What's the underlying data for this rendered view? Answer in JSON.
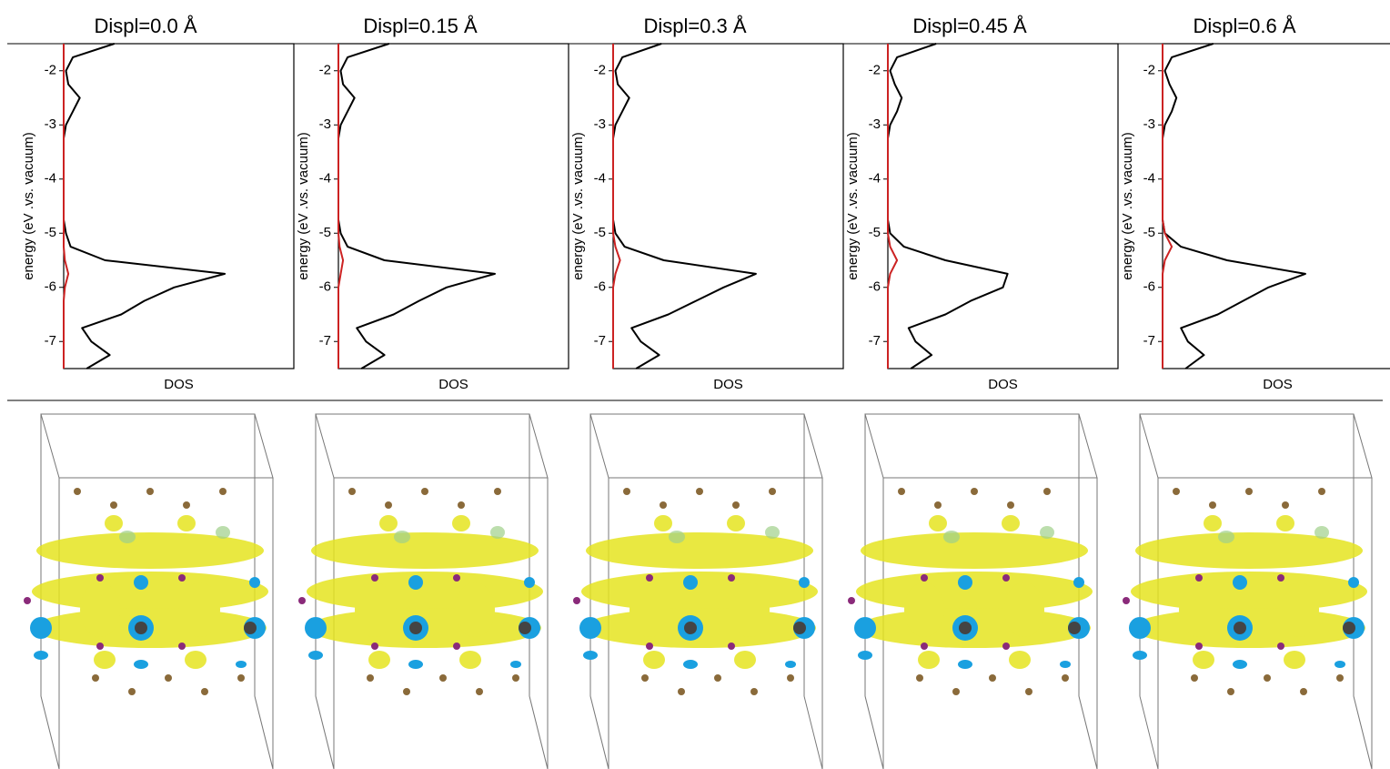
{
  "chart_data": [
    {
      "type": "line",
      "title": "Displ=0.0 Å",
      "xlabel": "DOS",
      "ylabel": "energy (eV .vs. vacuum)",
      "y": [
        -1.5,
        -1.75,
        -2.0,
        -2.25,
        -2.5,
        -2.75,
        -3.0,
        -3.25,
        -3.5,
        -3.75,
        -4.0,
        -4.25,
        -4.5,
        -4.75,
        -5.0,
        -5.25,
        -5.5,
        -5.75,
        -6.0,
        -6.25,
        -6.5,
        -6.75,
        -7.0,
        -7.25,
        -7.5
      ],
      "xlim": [
        0,
        1
      ],
      "ylim": [
        -7.5,
        -1.5
      ],
      "yticks": [
        -2,
        -3,
        -4,
        -5,
        -6,
        -7
      ],
      "series": [
        {
          "color": "#000000",
          "values": [
            0.22,
            0.04,
            0.01,
            0.02,
            0.07,
            0.04,
            0.01,
            0,
            0,
            0,
            0,
            0,
            0,
            0,
            0.01,
            0.03,
            0.18,
            0.7,
            0.48,
            0.35,
            0.25,
            0.08,
            0.12,
            0.2,
            0.1
          ]
        },
        {
          "color": "#cc2222",
          "values": [
            0,
            0,
            0,
            0,
            0,
            0,
            0,
            0,
            0,
            0,
            0,
            0,
            0,
            0,
            0,
            0,
            0.005,
            0.02,
            0.005,
            0,
            0,
            0,
            0,
            0,
            0
          ]
        }
      ]
    },
    {
      "type": "line",
      "title": "Displ=0.15 Å",
      "xlabel": "DOS",
      "ylabel": "energy (eV .vs. vacuum)",
      "y": [
        -1.5,
        -1.75,
        -2.0,
        -2.25,
        -2.5,
        -2.75,
        -3.0,
        -3.25,
        -3.5,
        -3.75,
        -4.0,
        -4.25,
        -4.5,
        -4.75,
        -5.0,
        -5.25,
        -5.5,
        -5.75,
        -6.0,
        -6.25,
        -6.5,
        -6.75,
        -7.0,
        -7.25,
        -7.5
      ],
      "xlim": [
        0,
        1
      ],
      "ylim": [
        -7.5,
        -1.5
      ],
      "yticks": [
        -2,
        -3,
        -4,
        -5,
        -6,
        -7
      ],
      "series": [
        {
          "color": "#000000",
          "values": [
            0.22,
            0.04,
            0.01,
            0.02,
            0.07,
            0.04,
            0.01,
            0,
            0,
            0,
            0,
            0,
            0,
            0,
            0.01,
            0.04,
            0.2,
            0.68,
            0.47,
            0.35,
            0.24,
            0.08,
            0.12,
            0.2,
            0.1
          ]
        },
        {
          "color": "#cc2222",
          "values": [
            0,
            0,
            0,
            0,
            0,
            0,
            0,
            0,
            0,
            0,
            0,
            0,
            0,
            0,
            0,
            0.005,
            0.02,
            0.01,
            0,
            0,
            0,
            0,
            0,
            0,
            0
          ]
        }
      ]
    },
    {
      "type": "line",
      "title": "Displ=0.3 Å",
      "xlabel": "DOS",
      "ylabel": "energy (eV .vs. vacuum)",
      "y": [
        -1.5,
        -1.75,
        -2.0,
        -2.25,
        -2.5,
        -2.75,
        -3.0,
        -3.25,
        -3.5,
        -3.75,
        -4.0,
        -4.25,
        -4.5,
        -4.75,
        -5.0,
        -5.25,
        -5.5,
        -5.75,
        -6.0,
        -6.25,
        -6.5,
        -6.75,
        -7.0,
        -7.25,
        -7.5
      ],
      "xlim": [
        0,
        1
      ],
      "ylim": [
        -7.5,
        -1.5
      ],
      "yticks": [
        -2,
        -3,
        -4,
        -5,
        -6,
        -7
      ],
      "series": [
        {
          "color": "#000000",
          "values": [
            0.21,
            0.04,
            0.01,
            0.02,
            0.07,
            0.04,
            0.01,
            0,
            0,
            0,
            0,
            0,
            0,
            0,
            0.01,
            0.05,
            0.22,
            0.62,
            0.48,
            0.36,
            0.24,
            0.08,
            0.12,
            0.2,
            0.1
          ]
        },
        {
          "color": "#cc2222",
          "values": [
            0,
            0,
            0,
            0,
            0,
            0,
            0,
            0,
            0,
            0,
            0,
            0,
            0,
            0,
            0,
            0.01,
            0.03,
            0.01,
            0,
            0,
            0,
            0,
            0,
            0,
            0
          ]
        }
      ]
    },
    {
      "type": "line",
      "title": "Displ=0.45 Å",
      "xlabel": "DOS",
      "ylabel": "energy (eV .vs. vacuum)",
      "y": [
        -1.5,
        -1.75,
        -2.0,
        -2.25,
        -2.5,
        -2.75,
        -3.0,
        -3.25,
        -3.5,
        -3.75,
        -4.0,
        -4.25,
        -4.5,
        -4.75,
        -5.0,
        -5.25,
        -5.5,
        -5.75,
        -6.0,
        -6.25,
        -6.5,
        -6.75,
        -7.0,
        -7.25,
        -7.5
      ],
      "xlim": [
        0,
        1
      ],
      "ylim": [
        -7.5,
        -1.5
      ],
      "yticks": [
        -2,
        -3,
        -4,
        -5,
        -6,
        -7
      ],
      "series": [
        {
          "color": "#000000",
          "values": [
            0.21,
            0.04,
            0.01,
            0.03,
            0.06,
            0.04,
            0.01,
            0,
            0,
            0,
            0,
            0,
            0,
            0,
            0.01,
            0.07,
            0.25,
            0.52,
            0.5,
            0.36,
            0.25,
            0.09,
            0.12,
            0.19,
            0.1
          ]
        },
        {
          "color": "#cc2222",
          "values": [
            0,
            0,
            0,
            0,
            0,
            0,
            0,
            0,
            0,
            0,
            0,
            0,
            0,
            0,
            0,
            0.01,
            0.04,
            0.01,
            0,
            0,
            0,
            0,
            0,
            0,
            0
          ]
        }
      ]
    },
    {
      "type": "line",
      "title": "Displ=0.6 Å",
      "xlabel": "DOS",
      "ylabel": "energy (eV .vs. vacuum)",
      "y": [
        -1.5,
        -1.75,
        -2.0,
        -2.25,
        -2.5,
        -2.75,
        -3.0,
        -3.25,
        -3.5,
        -3.75,
        -4.0,
        -4.25,
        -4.5,
        -4.75,
        -5.0,
        -5.25,
        -5.5,
        -5.75,
        -6.0,
        -6.25,
        -6.5,
        -6.75,
        -7.0,
        -7.25,
        -7.5
      ],
      "xlim": [
        0,
        1
      ],
      "ylim": [
        -7.5,
        -1.5
      ],
      "yticks": [
        -2,
        -3,
        -4,
        -5,
        -6,
        -7
      ],
      "series": [
        {
          "color": "#000000",
          "values": [
            0.22,
            0.04,
            0.01,
            0.03,
            0.06,
            0.04,
            0.01,
            0,
            0,
            0,
            0,
            0,
            0,
            0,
            0.01,
            0.08,
            0.28,
            0.62,
            0.46,
            0.35,
            0.24,
            0.08,
            0.11,
            0.18,
            0.1
          ]
        },
        {
          "color": "#cc2222",
          "values": [
            0,
            0,
            0,
            0,
            0,
            0,
            0,
            0,
            0,
            0,
            0,
            0,
            0,
            0,
            0.01,
            0.04,
            0.01,
            0,
            0,
            0,
            0,
            0,
            0,
            0,
            0
          ]
        }
      ]
    }
  ]
}
